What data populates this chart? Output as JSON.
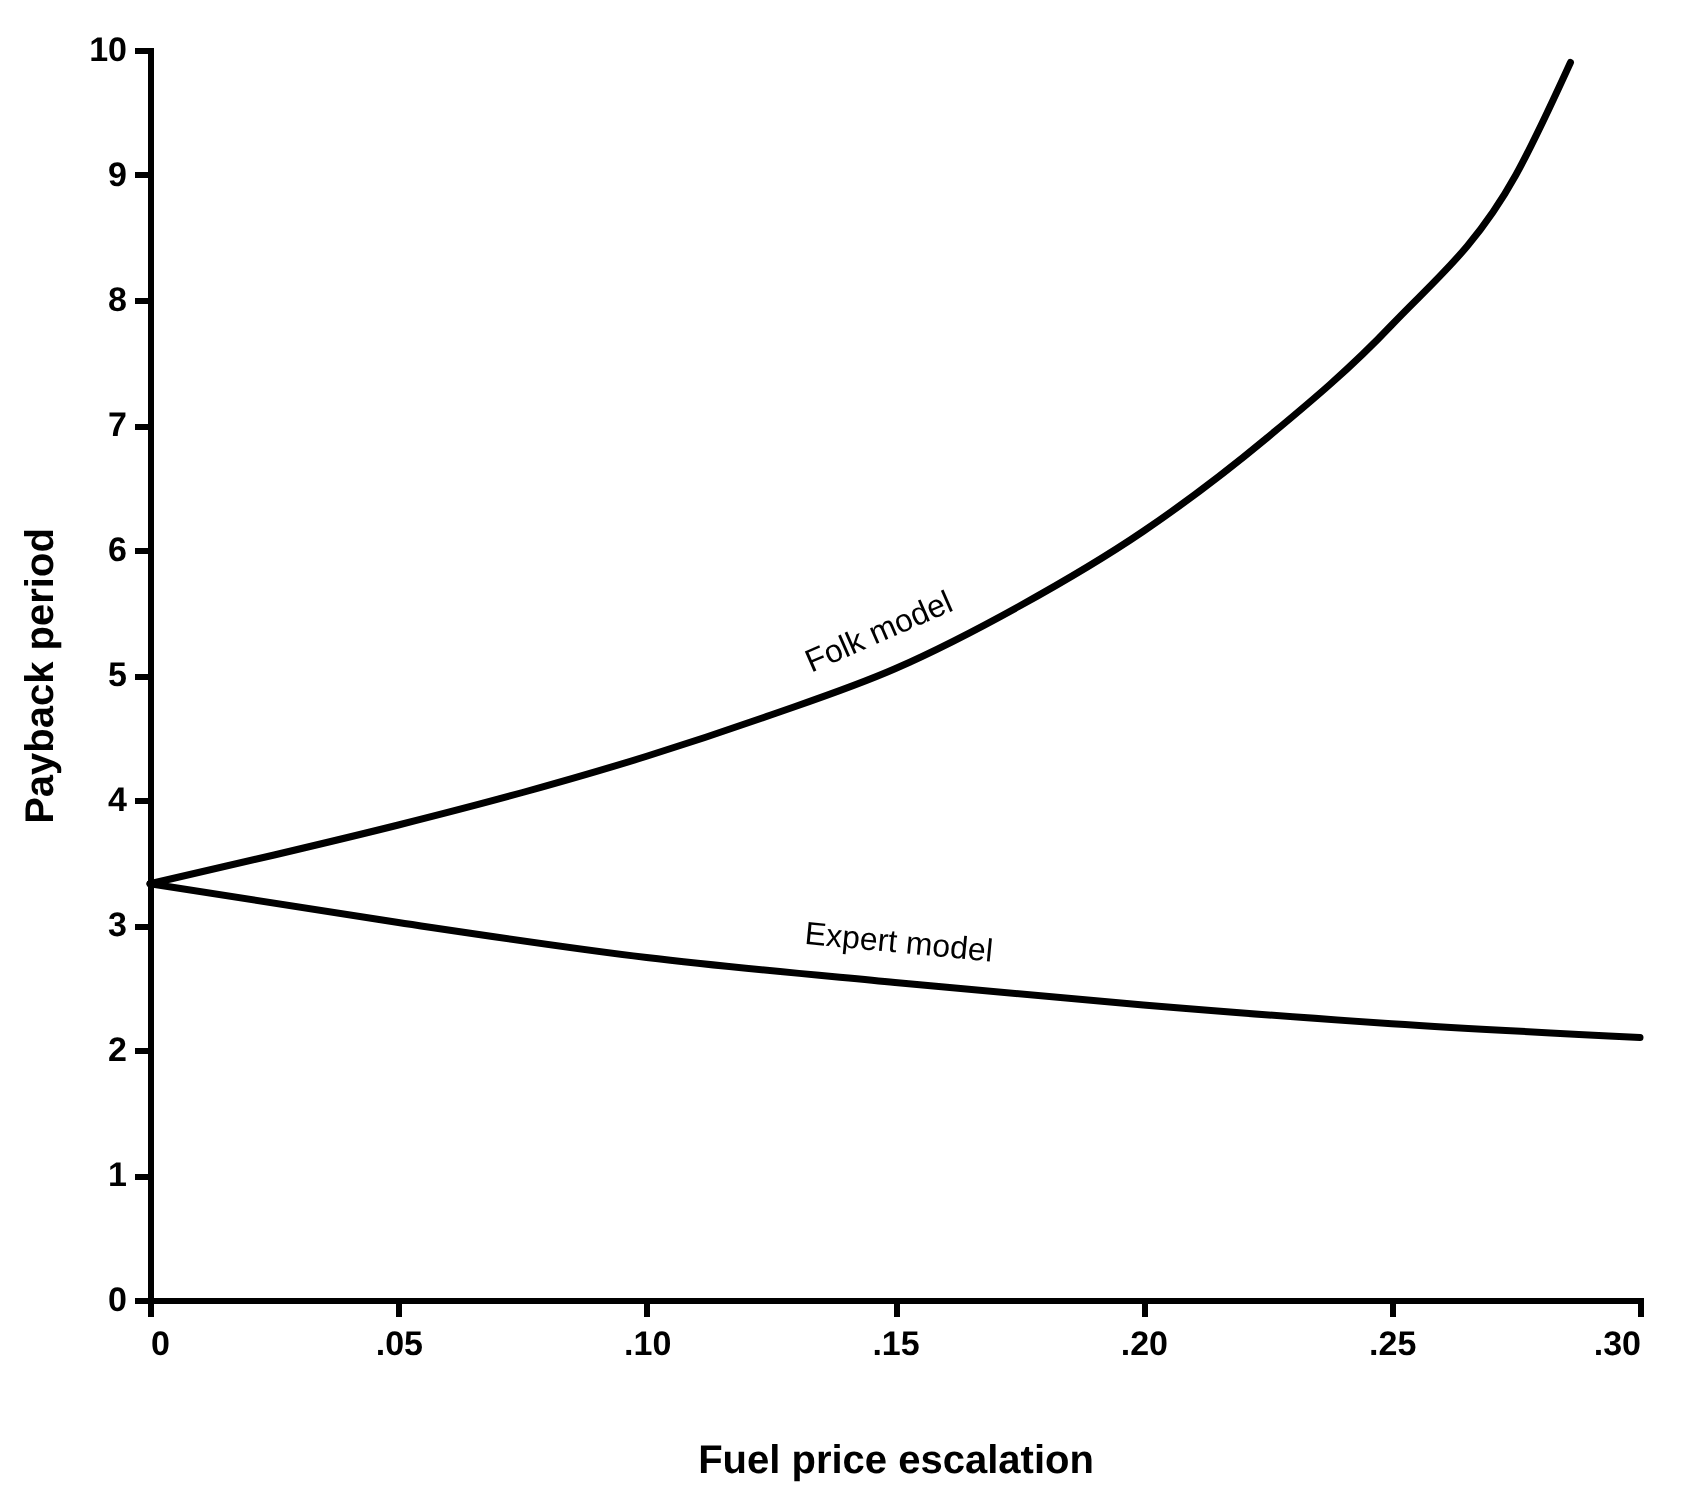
{
  "chart_data": {
    "type": "line",
    "xlabel": "Fuel price escalation",
    "ylabel": "Payback period",
    "xlim": [
      0,
      0.3
    ],
    "ylim": [
      0,
      10
    ],
    "xticks": [
      {
        "value": 0,
        "label": "0"
      },
      {
        "value": 0.05,
        "label": ".05"
      },
      {
        "value": 0.1,
        "label": ".10"
      },
      {
        "value": 0.15,
        "label": ".15"
      },
      {
        "value": 0.2,
        "label": ".20"
      },
      {
        "value": 0.25,
        "label": ".25"
      },
      {
        "value": 0.3,
        "label": ".30"
      }
    ],
    "yticks": [
      0,
      1,
      2,
      3,
      4,
      5,
      6,
      7,
      8,
      9,
      10
    ],
    "grid": false,
    "legend": false,
    "marker": "none",
    "line_style": "solid",
    "series": [
      {
        "name": "Folk model",
        "color": "#000000",
        "x": [
          0,
          0.025,
          0.05,
          0.075,
          0.1,
          0.125,
          0.15,
          0.175,
          0.2,
          0.225,
          0.25,
          0.275,
          0.286
        ],
        "values": [
          3.33,
          3.56,
          3.8,
          4.06,
          4.35,
          4.68,
          5.05,
          5.55,
          6.15,
          6.9,
          7.8,
          9.0,
          9.9
        ]
      },
      {
        "name": "Expert model",
        "color": "#000000",
        "x": [
          0,
          0.05,
          0.1,
          0.15,
          0.2,
          0.25,
          0.3
        ],
        "values": [
          3.33,
          3.02,
          2.74,
          2.54,
          2.36,
          2.21,
          2.1
        ]
      }
    ]
  }
}
